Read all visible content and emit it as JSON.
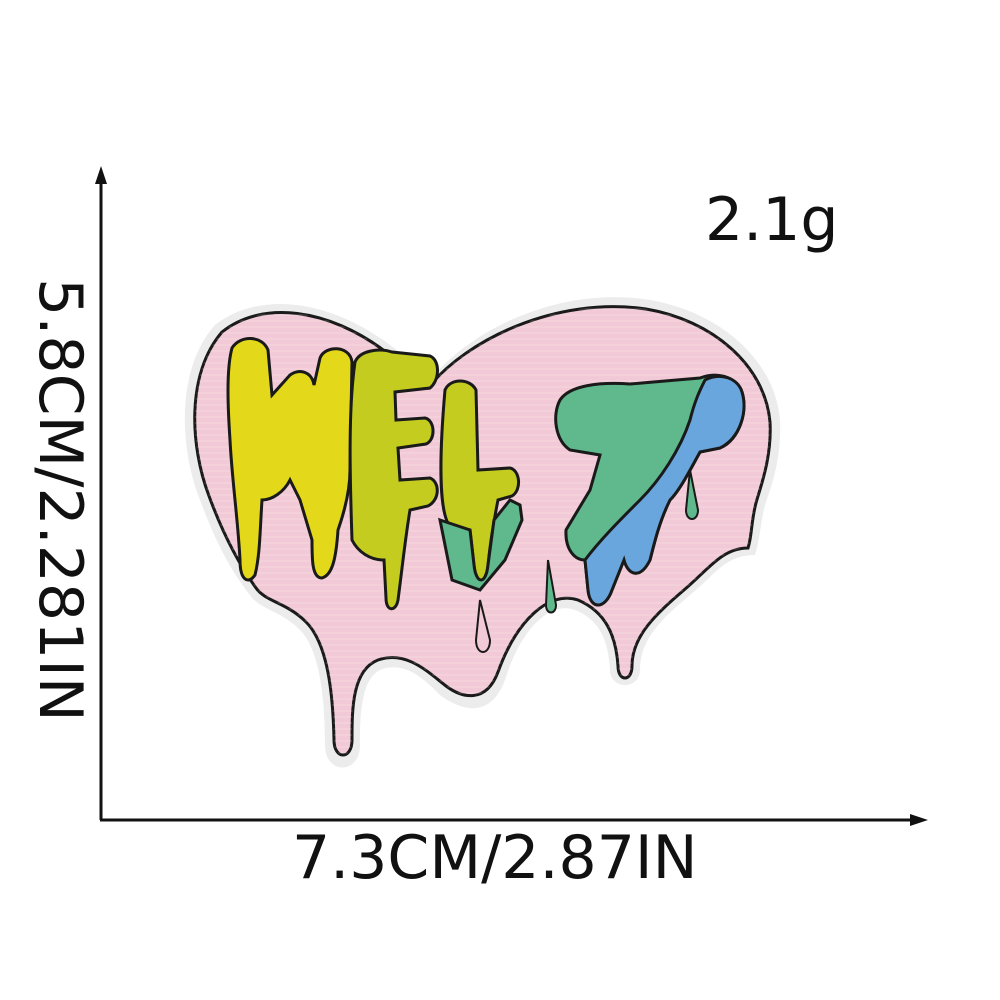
{
  "dimensions": {
    "weight": "2.1g",
    "width": "7.3CM/2.87IN",
    "height": "5.8CM/2.281IN"
  },
  "patch": {
    "text": "MELT",
    "colors": {
      "heart": "#f2c9d6",
      "outline": "#1a1a1a",
      "yellow": "#e4d81a",
      "lime": "#c4cc20",
      "green": "#5fb98c",
      "blue": "#6aa6de"
    }
  }
}
